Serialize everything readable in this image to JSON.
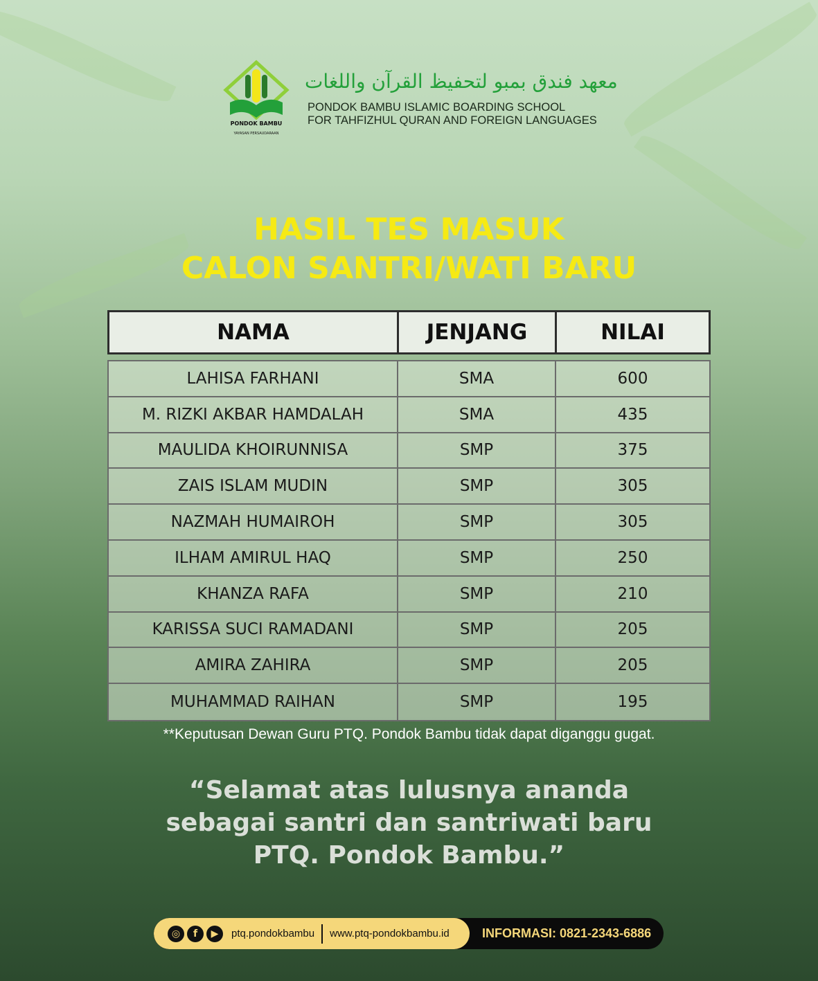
{
  "header": {
    "arabic": "معهد فندق بمبو لتحفيظ القرآن واللغات",
    "school_line1": "PONDOK BAMBU ISLAMIC BOARDING SCHOOL",
    "school_line2": "FOR TAHFIZHUL QURAN AND FOREIGN LANGUAGES",
    "logo_text": "PONDOK BAMBU",
    "colors": {
      "logo_green": "#23a03a",
      "logo_yellow": "#f3e61a"
    }
  },
  "title": {
    "line1": "HASIL TES MASUK",
    "line2": "CALON SANTRI/WATI BARU",
    "color": "#f6ea14"
  },
  "table": {
    "columns": [
      "NAMA",
      "JENJANG",
      "NILAI"
    ],
    "rows": [
      [
        "LAHISA FARHANI",
        "SMA",
        "600"
      ],
      [
        "M. RIZKI AKBAR HAMDALAH",
        "SMA",
        "435"
      ],
      [
        "MAULIDA KHOIRUNNISA",
        "SMP",
        "375"
      ],
      [
        "ZAIS ISLAM MUDIN",
        "SMP",
        "305"
      ],
      [
        "NAZMAH HUMAIROH",
        "SMP",
        "305"
      ],
      [
        "ILHAM AMIRUL HAQ",
        "SMP",
        "250"
      ],
      [
        "KHANZA RAFA",
        "SMP",
        "210"
      ],
      [
        "KARISSA SUCI RAMADANI",
        "SMP",
        "205"
      ],
      [
        "AMIRA ZAHIRA",
        "SMP",
        "205"
      ],
      [
        "MUHAMMAD RAIHAN",
        "SMP",
        "195"
      ]
    ]
  },
  "note": "**Keputusan Dewan Guru PTQ. Pondok Bambu tidak dapat diganggu gugat.",
  "quote": {
    "line1": "“Selamat atas lulusnya ananda",
    "line2": "sebagai santri dan santriwati baru",
    "line3": "PTQ. Pondok Bambu.”"
  },
  "footer": {
    "social_icons": [
      "instagram-icon",
      "facebook-icon",
      "youtube-icon"
    ],
    "handle": "ptq.pondokbambu",
    "website": "www.ptq-pondokbambu.id",
    "info": "INFORMASI: 0821-2343-6886"
  }
}
